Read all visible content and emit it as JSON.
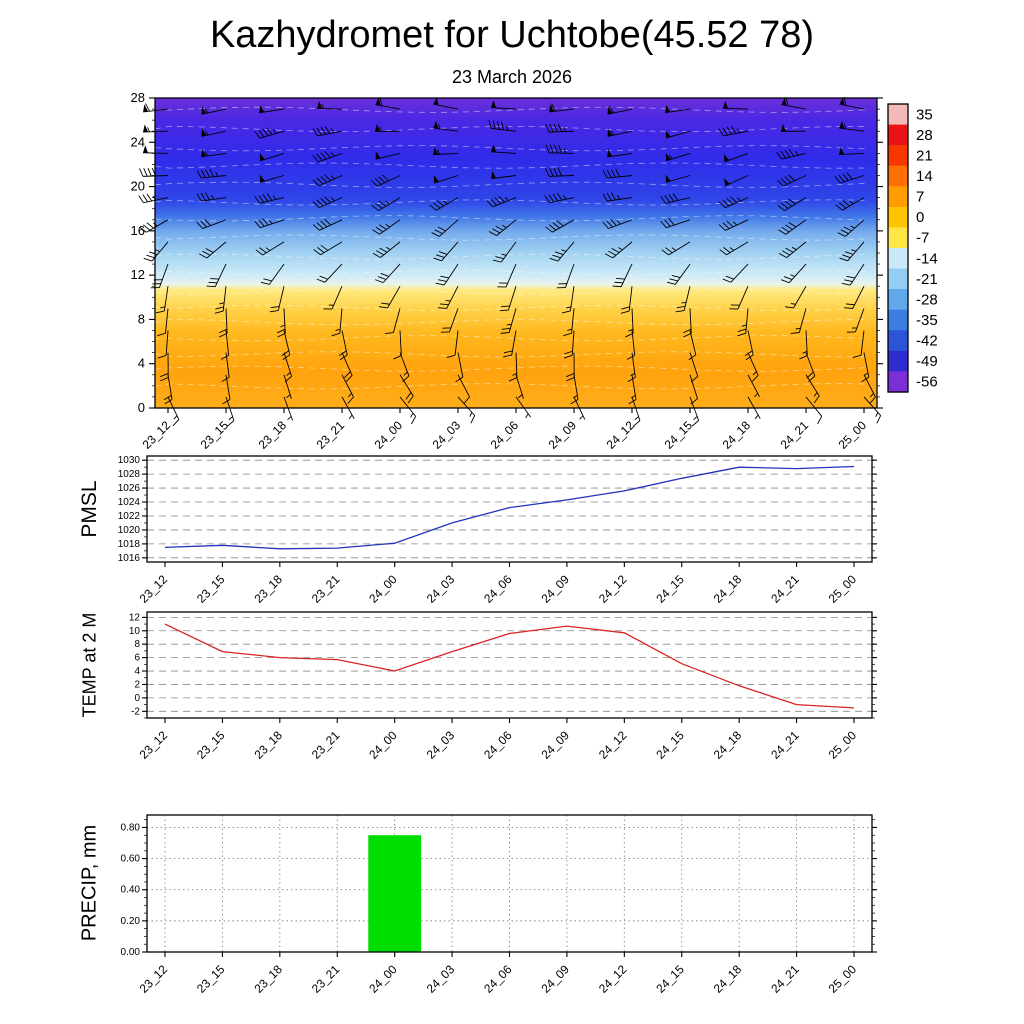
{
  "title": "Kazhydromet for Uchtobe(45.52 78)",
  "subtitle": "23 March 2026",
  "time_labels": [
    "23_12",
    "23_15",
    "23_18",
    "23_21",
    "24_00",
    "24_03",
    "24_06",
    "24_09",
    "24_12",
    "24_15",
    "24_18",
    "24_21",
    "25_00"
  ],
  "chart_data": [
    {
      "type": "heatmap",
      "name": "vertical-cross-section",
      "description": "Temperature shading with wind barbs vs height and time",
      "categories": [
        "23_12",
        "23_15",
        "23_18",
        "23_21",
        "24_00",
        "24_03",
        "24_06",
        "24_09",
        "24_12",
        "24_15",
        "24_18",
        "24_21",
        "25_00"
      ],
      "ylim": [
        0,
        28
      ],
      "yticks": [
        0,
        4,
        8,
        12,
        16,
        20,
        24,
        28
      ],
      "temperature_gradient": [
        {
          "at": 0.0,
          "color": "#6a30d8"
        },
        {
          "at": 0.07,
          "color": "#4a28e4"
        },
        {
          "at": 0.2,
          "color": "#2f2cea"
        },
        {
          "at": 0.33,
          "color": "#2f46e8"
        },
        {
          "at": 0.38,
          "color": "#3f74e8"
        },
        {
          "at": 0.43,
          "color": "#74aaec"
        },
        {
          "at": 0.5,
          "color": "#a2d2f2"
        },
        {
          "at": 0.57,
          "color": "#cdeaf8"
        },
        {
          "at": 0.6,
          "color": "#e8f4ee"
        },
        {
          "at": 0.62,
          "color": "#ffe97e"
        },
        {
          "at": 0.68,
          "color": "#ffd24a"
        },
        {
          "at": 0.76,
          "color": "#ffb81e"
        },
        {
          "at": 0.88,
          "color": "#ffa30e"
        },
        {
          "at": 1.0,
          "color": "#ffad1a"
        }
      ],
      "wind_profile": {
        "heights": [
          1,
          3,
          5,
          7,
          9,
          11,
          13,
          15,
          17,
          19,
          21,
          23,
          25,
          27
        ],
        "direction_deg": [
          150,
          160,
          168,
          178,
          188,
          198,
          212,
          228,
          240,
          250,
          256,
          262,
          266,
          270
        ],
        "speed_kt": [
          10,
          12,
          15,
          15,
          18,
          20,
          25,
          30,
          35,
          40,
          45,
          50,
          50,
          55
        ]
      },
      "colorbar": {
        "labels": [
          "35",
          "28",
          "21",
          "14",
          "7",
          "0",
          "-7",
          "-14",
          "-21",
          "-28",
          "-35",
          "-42",
          "-49",
          "-56"
        ],
        "colors": [
          "#f3b8b8",
          "#e81416",
          "#f63800",
          "#ff7000",
          "#ff9c00",
          "#ffc400",
          "#ffe545",
          "#c9e8f8",
          "#93cdf3",
          "#5fa9ea",
          "#3a7fe0",
          "#2b55d6",
          "#2e2ccf",
          "#7c2fd6"
        ]
      }
    },
    {
      "type": "line",
      "name": "pmsl",
      "ylabel": "PMSL",
      "color": "#2233bb",
      "categories": [
        "23_12",
        "23_15",
        "23_18",
        "23_21",
        "24_00",
        "24_03",
        "24_06",
        "24_09",
        "24_12",
        "24_15",
        "24_18",
        "24_21",
        "25_00"
      ],
      "values": [
        1017.5,
        1017.8,
        1017.3,
        1017.4,
        1018.1,
        1021.0,
        1023.2,
        1024.3,
        1025.6,
        1027.4,
        1029.0,
        1028.8,
        1029.1
      ],
      "yticks": [
        1016,
        1018,
        1020,
        1022,
        1024,
        1026,
        1028,
        1030
      ],
      "ylim": [
        1015.4,
        1030.6
      ],
      "grid": "dashed"
    },
    {
      "type": "line",
      "name": "temp2m",
      "ylabel": "TEMP at 2 M",
      "color": "#dd2222",
      "categories": [
        "23_12",
        "23_15",
        "23_18",
        "23_21",
        "24_00",
        "24_03",
        "24_06",
        "24_09",
        "24_12",
        "24_15",
        "24_18",
        "24_21",
        "25_00"
      ],
      "values": [
        11.0,
        6.9,
        6.0,
        5.7,
        4.0,
        6.9,
        9.6,
        10.7,
        9.7,
        5.1,
        1.8,
        -1.0,
        -1.5
      ],
      "yticks": [
        -2,
        0,
        2,
        4,
        6,
        8,
        10,
        12
      ],
      "ylim": [
        -3.0,
        12.8
      ],
      "grid": "dashed"
    },
    {
      "type": "bar",
      "name": "precip",
      "ylabel": "PRECIP, mm",
      "color": "#00dd00",
      "categories": [
        "23_12",
        "23_15",
        "23_18",
        "23_21",
        "24_00",
        "24_03",
        "24_06",
        "24_09",
        "24_12",
        "24_15",
        "24_18",
        "24_21",
        "25_00"
      ],
      "values": [
        0,
        0,
        0,
        0,
        0.75,
        0,
        0,
        0,
        0,
        0,
        0,
        0,
        0
      ],
      "ytick_labels": [
        "0.00",
        "0.20",
        "0.40",
        "0.60",
        "0.80"
      ],
      "ytick_values": [
        0,
        0.2,
        0.4,
        0.6,
        0.8
      ],
      "ylim": [
        0,
        0.88
      ],
      "grid": "dotted"
    }
  ]
}
